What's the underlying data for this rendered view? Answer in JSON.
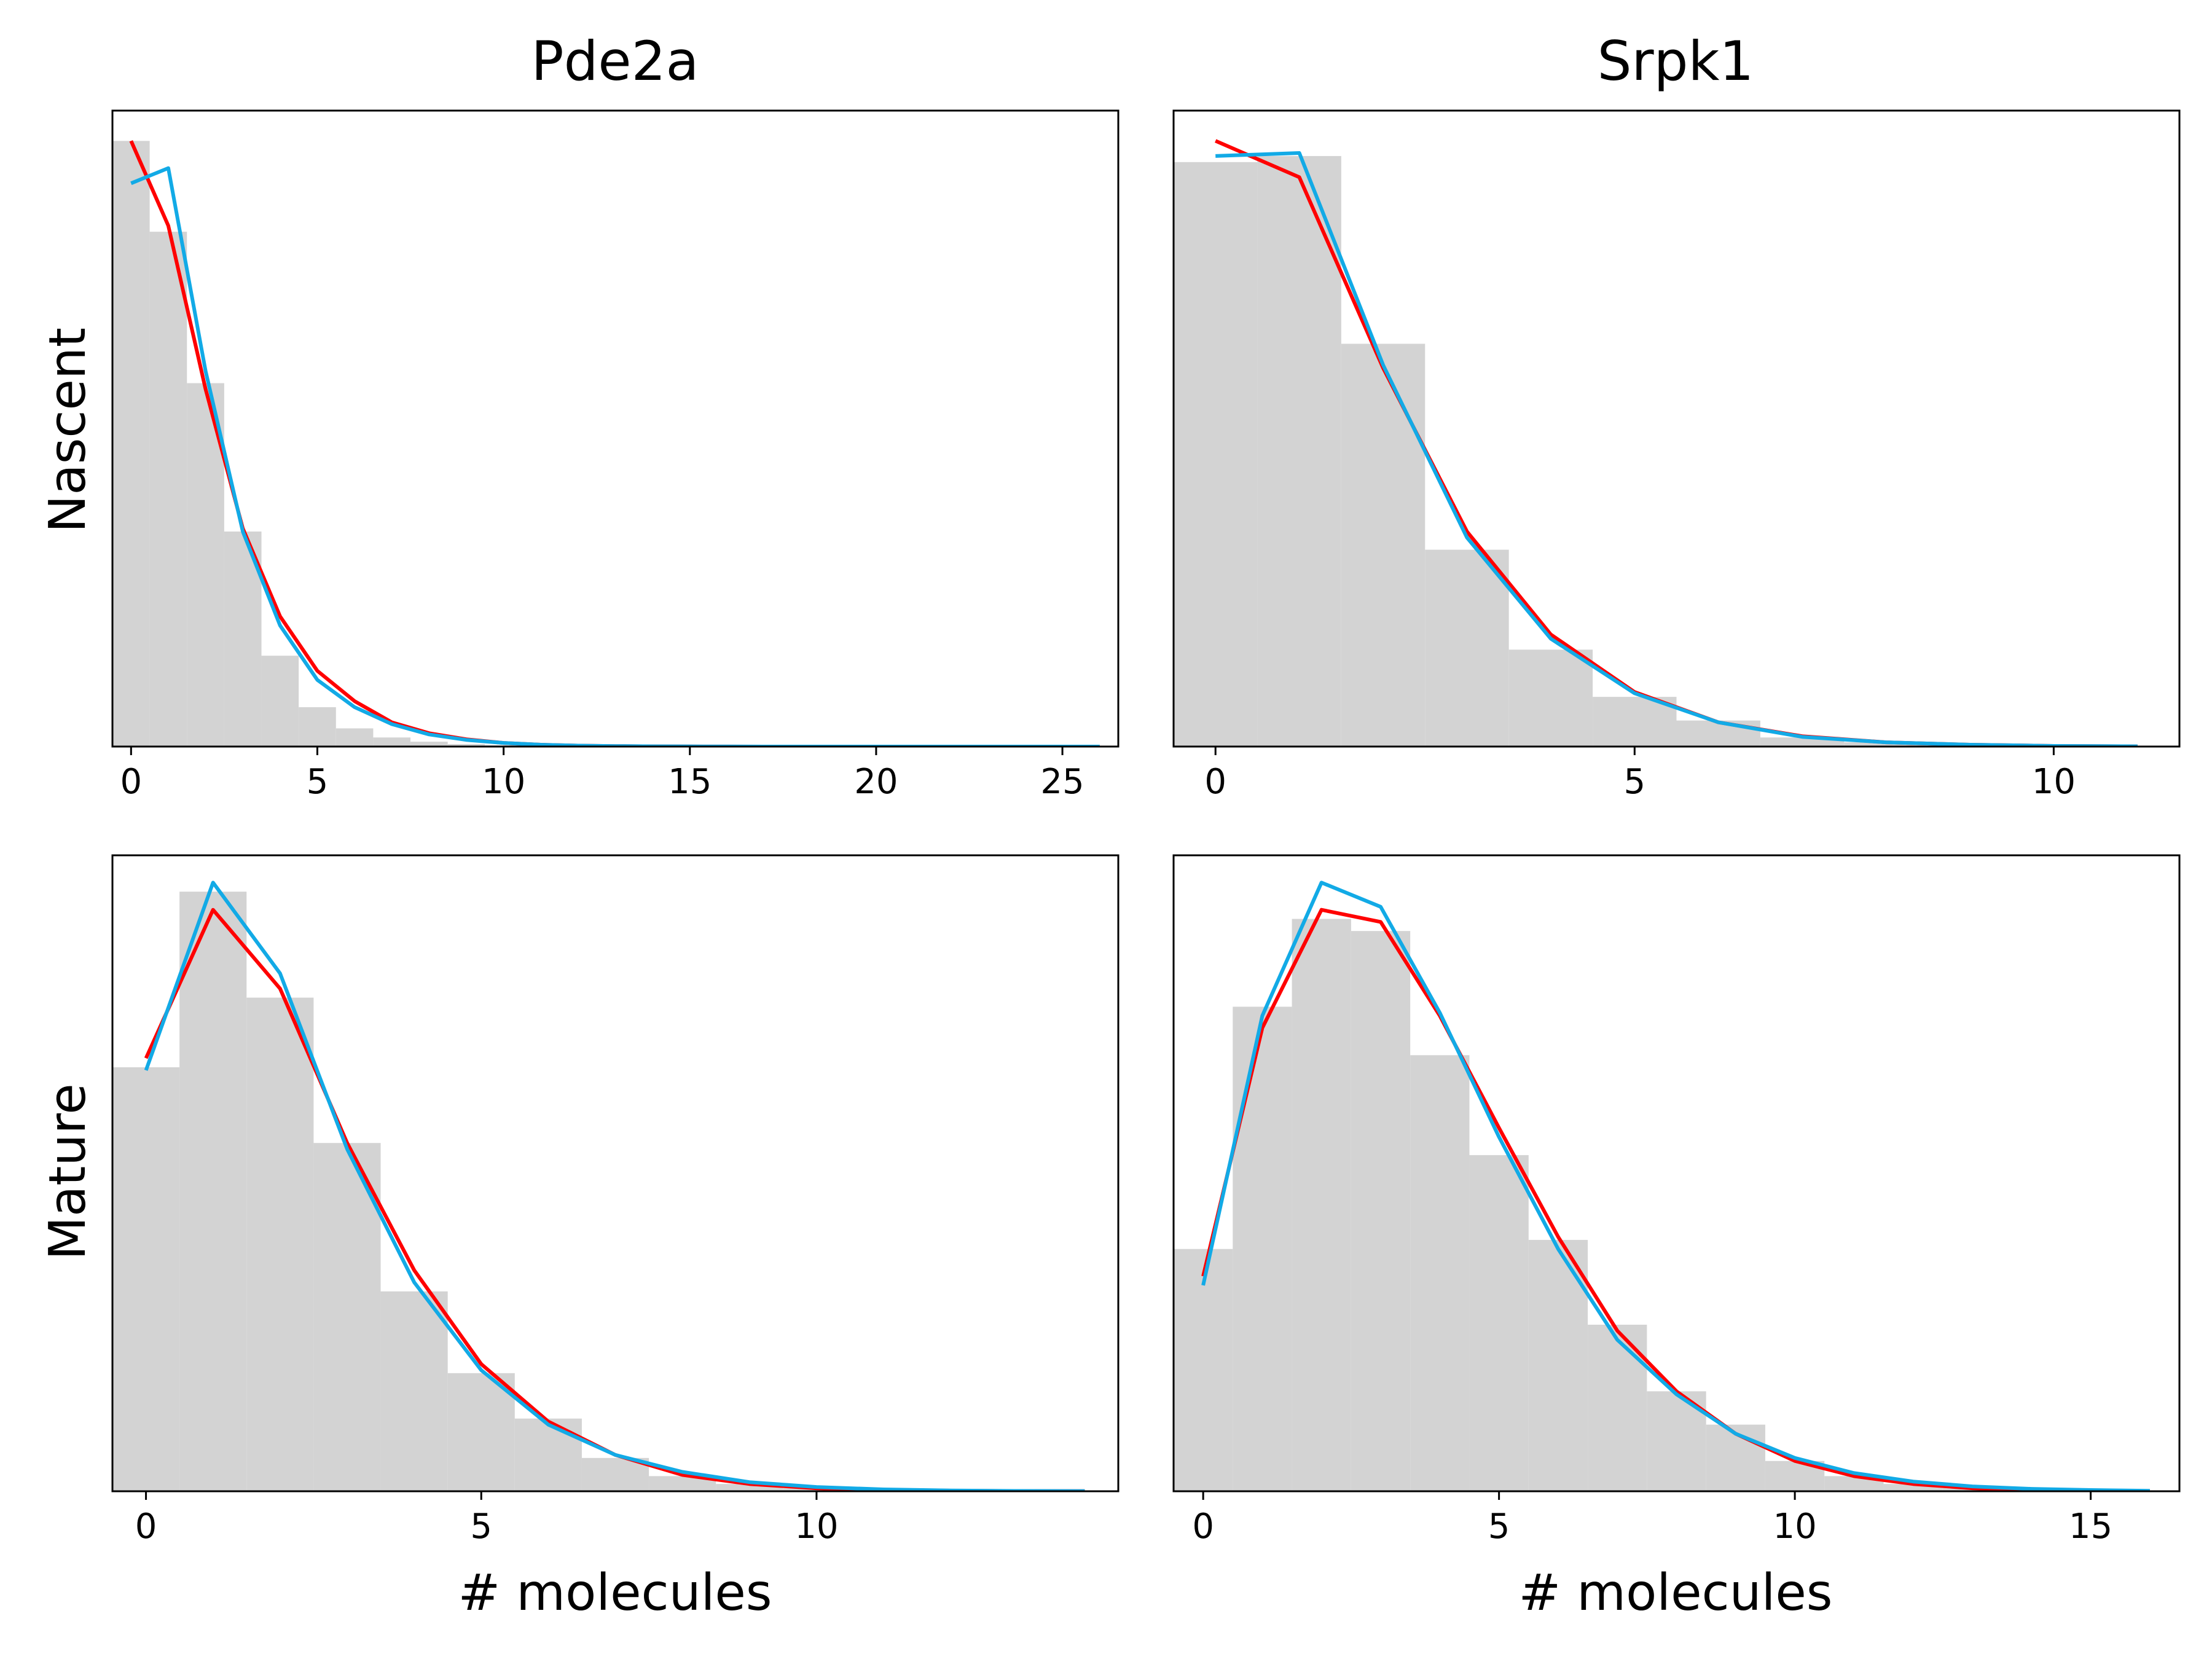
{
  "figure": {
    "columns": [
      "Pde2a",
      "Srpk1"
    ],
    "rows": [
      "Nascent",
      "Mature"
    ],
    "xlabel": "# molecules"
  },
  "colors": {
    "histogram": "#d3d3d3",
    "red_line": "#ff0000",
    "blue_line": "#12aae6"
  },
  "chart_data": [
    {
      "type": "bar",
      "title": "Pde2a",
      "ylabel": "Nascent",
      "xlabel": "",
      "xlim": [
        -0.5,
        26.5
      ],
      "ylim": [
        0,
        1.05
      ],
      "xticks": [
        0,
        5,
        10,
        15,
        20,
        25
      ],
      "bin_width": 1,
      "histogram": {
        "x": [
          0,
          1,
          2,
          3,
          4,
          5,
          6,
          7,
          8,
          9,
          10,
          11,
          12,
          13,
          14,
          15,
          16,
          17,
          18,
          19,
          20,
          21,
          22,
          23,
          24,
          25,
          26
        ],
        "values": [
          1.0,
          0.85,
          0.6,
          0.355,
          0.15,
          0.065,
          0.03,
          0.015,
          0.008,
          0.004,
          0.002,
          0.001,
          0,
          0,
          0,
          0,
          0,
          0,
          0,
          0,
          0,
          0,
          0,
          0,
          0,
          0,
          0
        ]
      },
      "series": [
        {
          "color": "#ff0000",
          "x": [
            0,
            1,
            2,
            3,
            4,
            5,
            6,
            7,
            8,
            9,
            10,
            11,
            12,
            13,
            14,
            15,
            16,
            17,
            18,
            19,
            20,
            21,
            22,
            23,
            24,
            25,
            26
          ],
          "y": [
            1.0,
            0.86,
            0.59,
            0.36,
            0.215,
            0.125,
            0.075,
            0.04,
            0.022,
            0.012,
            0.006,
            0.003,
            0.0015,
            0.0008,
            0.0004,
            0.0002,
            0.0001,
            0,
            0,
            0,
            0,
            0,
            0,
            0,
            0,
            0,
            0
          ]
        },
        {
          "color": "#12aae6",
          "x": [
            0,
            1,
            2,
            3,
            4,
            5,
            6,
            7,
            8,
            9,
            10,
            11,
            12,
            13,
            14,
            15,
            16,
            17,
            18,
            19,
            20,
            21,
            22,
            23,
            24,
            25,
            26
          ],
          "y": [
            0.93,
            0.955,
            0.62,
            0.355,
            0.2,
            0.11,
            0.065,
            0.037,
            0.02,
            0.011,
            0.006,
            0.003,
            0.0015,
            0.0008,
            0.0004,
            0.0002,
            0.0001,
            0,
            0,
            0,
            0,
            0,
            0,
            0,
            0,
            0,
            0
          ]
        }
      ]
    },
    {
      "type": "bar",
      "title": "Srpk1",
      "ylabel": "",
      "xlabel": "",
      "xlim": [
        -0.5,
        11.5
      ],
      "ylim": [
        0,
        1.05
      ],
      "xticks": [
        0,
        5,
        10
      ],
      "bin_width": 1,
      "histogram": {
        "x": [
          0,
          1,
          2,
          3,
          4,
          5,
          6,
          7,
          8,
          9,
          10,
          11
        ],
        "values": [
          0.965,
          0.975,
          0.665,
          0.325,
          0.16,
          0.082,
          0.043,
          0.015,
          0.007,
          0.003,
          0.001,
          0.0005
        ]
      },
      "series": [
        {
          "color": "#ff0000",
          "x": [
            0,
            1,
            2,
            3,
            4,
            5,
            6,
            7,
            8,
            9,
            10,
            11
          ],
          "y": [
            1.0,
            0.94,
            0.625,
            0.355,
            0.185,
            0.09,
            0.04,
            0.017,
            0.007,
            0.003,
            0.001,
            0.0004
          ]
        },
        {
          "color": "#12aae6",
          "x": [
            0,
            1,
            2,
            3,
            4,
            5,
            6,
            7,
            8,
            9,
            10,
            11
          ],
          "y": [
            0.975,
            0.98,
            0.63,
            0.345,
            0.178,
            0.088,
            0.04,
            0.016,
            0.007,
            0.003,
            0.001,
            0.0004
          ]
        }
      ]
    },
    {
      "type": "bar",
      "title": "",
      "ylabel": "Mature",
      "xlabel": "# molecules",
      "xlim": [
        -0.5,
        14.5
      ],
      "ylim": [
        0,
        1.05
      ],
      "xticks": [
        0,
        5,
        10
      ],
      "bin_width": 1,
      "histogram": {
        "x": [
          0,
          1,
          2,
          3,
          4,
          5,
          6,
          7,
          8,
          9,
          10,
          11,
          12,
          13,
          14
        ],
        "values": [
          0.7,
          0.99,
          0.815,
          0.575,
          0.33,
          0.195,
          0.12,
          0.055,
          0.025,
          0.012,
          0.005,
          0.002,
          0.001,
          0.0005,
          0.0002
        ]
      },
      "series": [
        {
          "color": "#ff0000",
          "x": [
            0,
            1,
            2,
            3,
            4,
            5,
            6,
            7,
            8,
            9,
            10,
            11,
            12,
            13,
            14
          ],
          "y": [
            0.715,
            0.96,
            0.83,
            0.575,
            0.365,
            0.21,
            0.115,
            0.06,
            0.027,
            0.012,
            0.005,
            0.002,
            0.001,
            0.0004,
            0.0002
          ]
        },
        {
          "color": "#12aae6",
          "x": [
            0,
            1,
            2,
            3,
            4,
            5,
            6,
            7,
            8,
            9,
            10,
            11,
            12,
            13,
            14
          ],
          "y": [
            0.695,
            1.005,
            0.855,
            0.565,
            0.345,
            0.2,
            0.11,
            0.06,
            0.032,
            0.015,
            0.007,
            0.003,
            0.0013,
            0.0005,
            0.0002
          ]
        }
      ]
    },
    {
      "type": "bar",
      "title": "",
      "ylabel": "",
      "xlabel": "# molecules",
      "xlim": [
        -0.5,
        16.5
      ],
      "ylim": [
        0,
        1.05
      ],
      "xticks": [
        0,
        5,
        10,
        15
      ],
      "bin_width": 1,
      "histogram": {
        "x": [
          0,
          1,
          2,
          3,
          4,
          5,
          6,
          7,
          8,
          9,
          10,
          11,
          12,
          13,
          14,
          15,
          16
        ],
        "values": [
          0.4,
          0.8,
          0.945,
          0.925,
          0.72,
          0.555,
          0.415,
          0.275,
          0.165,
          0.11,
          0.05,
          0.025,
          0.012,
          0.006,
          0.003,
          0.001,
          0.0005
        ]
      },
      "series": [
        {
          "color": "#ff0000",
          "x": [
            0,
            1,
            2,
            3,
            4,
            5,
            6,
            7,
            8,
            9,
            10,
            11,
            12,
            13,
            14,
            15,
            16
          ],
          "y": [
            0.355,
            0.765,
            0.96,
            0.94,
            0.785,
            0.6,
            0.42,
            0.265,
            0.165,
            0.095,
            0.05,
            0.025,
            0.012,
            0.005,
            0.002,
            0.001,
            0.0004
          ]
        },
        {
          "color": "#12aae6",
          "x": [
            0,
            1,
            2,
            3,
            4,
            5,
            6,
            7,
            8,
            9,
            10,
            11,
            12,
            13,
            14,
            15,
            16
          ],
          "y": [
            0.34,
            0.785,
            1.005,
            0.965,
            0.79,
            0.585,
            0.4,
            0.25,
            0.16,
            0.095,
            0.055,
            0.03,
            0.016,
            0.008,
            0.004,
            0.002,
            0.0008
          ]
        }
      ]
    }
  ]
}
